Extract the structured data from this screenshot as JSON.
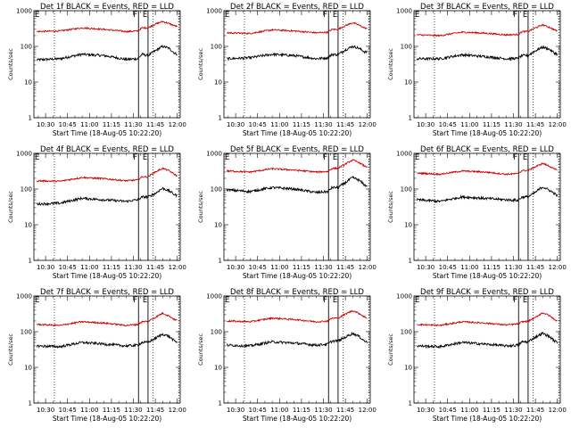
{
  "chart_data": {
    "type": "line",
    "panels": [
      {
        "title": "Det 1f BLACK = Events, RED = LLD"
      },
      {
        "title": "Det 2f BLACK = Events, RED = LLD"
      },
      {
        "title": "Det 3f BLACK = Events, RED = LLD"
      },
      {
        "title": "Det 4f BLACK = Events, RED = LLD"
      },
      {
        "title": "Det 5f BLACK = Events, RED = LLD"
      },
      {
        "title": "Det 6f BLACK = Events, RED = LLD"
      },
      {
        "title": "Det 7f BLACK = Events, RED = LLD"
      },
      {
        "title": "Det 8f BLACK = Events, RED = LLD"
      },
      {
        "title": "Det 9f BLACK = Events, RED = LLD"
      }
    ],
    "xlabel": "Start Time (18-Aug-05 10:22:20)",
    "ylabel": "Counts/sec",
    "x_ticks": [
      "10:30",
      "10:45",
      "11:00",
      "11:15",
      "11:30",
      "11:45",
      "12:00"
    ],
    "x_tick_minutes": [
      30,
      45,
      60,
      75,
      90,
      105,
      120
    ],
    "xlim": [
      22,
      122
    ],
    "y_scale": "log",
    "ylim": [
      1,
      1000
    ],
    "y_ticks": [
      "1",
      "10",
      "100",
      "1000"
    ],
    "markers": [
      {
        "label": "F",
        "x_minutes": 93.5
      },
      {
        "label": "E",
        "x_minutes": 100
      }
    ],
    "dotted_lines_minutes": [
      36,
      103.5,
      121
    ],
    "series": [
      {
        "name": "Events",
        "color": "#000000",
        "panels": [
          {
            "x": [
              24,
              40,
              55,
              70,
              85,
              93,
              96,
              100,
              105,
              110,
              114,
              118,
              120
            ],
            "y": [
              42,
              45,
              60,
              55,
              43,
              45,
              60,
              55,
              75,
              100,
              90,
              65,
              60
            ]
          },
          {
            "x": [
              24,
              40,
              55,
              70,
              85,
              93,
              96,
              100,
              105,
              110,
              114,
              118,
              120
            ],
            "y": [
              45,
              48,
              60,
              55,
              45,
              48,
              60,
              58,
              80,
              100,
              90,
              70,
              70
            ]
          },
          {
            "x": [
              24,
              40,
              55,
              70,
              85,
              93,
              96,
              100,
              105,
              110,
              114,
              118,
              120
            ],
            "y": [
              45,
              45,
              58,
              52,
              45,
              46,
              55,
              55,
              75,
              95,
              85,
              65,
              60
            ]
          },
          {
            "x": [
              24,
              40,
              55,
              70,
              85,
              93,
              96,
              100,
              105,
              110,
              114,
              118,
              120
            ],
            "y": [
              38,
              40,
              55,
              50,
              45,
              50,
              60,
              60,
              75,
              105,
              90,
              70,
              65
            ]
          },
          {
            "x": [
              24,
              40,
              55,
              70,
              85,
              93,
              96,
              100,
              105,
              110,
              114,
              118,
              120
            ],
            "y": [
              95,
              85,
              110,
              100,
              80,
              85,
              110,
              110,
              150,
              210,
              180,
              130,
              120
            ]
          },
          {
            "x": [
              24,
              40,
              55,
              70,
              85,
              93,
              96,
              100,
              105,
              110,
              114,
              118,
              120
            ],
            "y": [
              50,
              45,
              60,
              55,
              50,
              48,
              60,
              60,
              80,
              115,
              95,
              75,
              65
            ]
          },
          {
            "x": [
              24,
              40,
              55,
              70,
              85,
              93,
              96,
              100,
              105,
              110,
              114,
              118,
              120
            ],
            "y": [
              40,
              38,
              50,
              45,
              40,
              42,
              50,
              50,
              65,
              85,
              75,
              55,
              50
            ]
          },
          {
            "x": [
              24,
              40,
              55,
              70,
              85,
              93,
              96,
              100,
              105,
              110,
              114,
              118,
              120
            ],
            "y": [
              42,
              40,
              52,
              48,
              42,
              45,
              55,
              55,
              70,
              90,
              75,
              55,
              50
            ]
          },
          {
            "x": [
              24,
              40,
              55,
              70,
              85,
              93,
              96,
              100,
              105,
              110,
              114,
              118,
              120
            ],
            "y": [
              40,
              38,
              50,
              45,
              40,
              42,
              52,
              52,
              70,
              90,
              75,
              55,
              50
            ]
          }
        ]
      },
      {
        "name": "LLD",
        "color": "#cc0000",
        "panels": [
          {
            "x": [
              24,
              40,
              55,
              70,
              85,
              93,
              96,
              100,
              105,
              110,
              114,
              118,
              120
            ],
            "y": [
              260,
              270,
              330,
              300,
              260,
              270,
              330,
              330,
              420,
              500,
              440,
              380,
              360
            ]
          },
          {
            "x": [
              24,
              40,
              55,
              70,
              85,
              93,
              96,
              100,
              105,
              110,
              114,
              118,
              120
            ],
            "y": [
              240,
              230,
              290,
              270,
              240,
              250,
              300,
              300,
              380,
              460,
              400,
              330,
              310
            ]
          },
          {
            "x": [
              24,
              40,
              55,
              70,
              85,
              93,
              96,
              100,
              105,
              110,
              114,
              118,
              120
            ],
            "y": [
              210,
              200,
              250,
              235,
              210,
              215,
              260,
              260,
              330,
              400,
              350,
              290,
              270
            ]
          },
          {
            "x": [
              24,
              40,
              55,
              70,
              85,
              93,
              96,
              100,
              105,
              110,
              114,
              118,
              120
            ],
            "y": [
              170,
              165,
              210,
              195,
              170,
              180,
              220,
              220,
              300,
              380,
              330,
              260,
              230
            ]
          },
          {
            "x": [
              24,
              40,
              55,
              70,
              85,
              93,
              96,
              100,
              105,
              110,
              114,
              118,
              120
            ],
            "y": [
              320,
              300,
              370,
              340,
              300,
              310,
              380,
              380,
              500,
              650,
              560,
              440,
              420
            ]
          },
          {
            "x": [
              24,
              40,
              55,
              70,
              85,
              93,
              96,
              100,
              105,
              110,
              114,
              118,
              120
            ],
            "y": [
              280,
              260,
              320,
              300,
              260,
              270,
              330,
              330,
              420,
              520,
              450,
              360,
              340
            ]
          },
          {
            "x": [
              24,
              40,
              55,
              70,
              85,
              93,
              96,
              100,
              105,
              110,
              114,
              118,
              120
            ],
            "y": [
              160,
              150,
              190,
              175,
              150,
              160,
              190,
              195,
              250,
              330,
              280,
              220,
              210
            ]
          },
          {
            "x": [
              24,
              40,
              55,
              70,
              85,
              93,
              96,
              100,
              105,
              110,
              114,
              118,
              120
            ],
            "y": [
              200,
              190,
              240,
              220,
              190,
              200,
              240,
              240,
              310,
              390,
              330,
              260,
              240
            ]
          },
          {
            "x": [
              24,
              40,
              55,
              70,
              85,
              93,
              96,
              100,
              105,
              110,
              114,
              118,
              120
            ],
            "y": [
              160,
              150,
              190,
              175,
              155,
              165,
              190,
              195,
              250,
              340,
              290,
              220,
              200
            ]
          }
        ]
      }
    ]
  }
}
